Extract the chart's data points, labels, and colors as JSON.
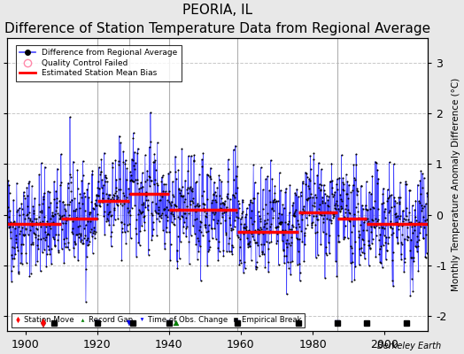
{
  "title": "PEORIA, IL",
  "subtitle": "Difference of Station Temperature Data from Regional Average",
  "ylabel": "Monthly Temperature Anomaly Difference (°C)",
  "xlabel_years": [
    1900,
    1920,
    1940,
    1960,
    1980,
    2000
  ],
  "ylim": [
    -2.3,
    3.5
  ],
  "xlim": [
    1895,
    2012
  ],
  "yticks": [
    -2,
    -1,
    0,
    1,
    2,
    3
  ],
  "background_color": "#e8e8e8",
  "plot_bg_color": "#ffffff",
  "grid_color": "#c8c8c8",
  "line_color": "#4444ff",
  "marker_color": "#000000",
  "bias_color": "#ff0000",
  "watermark": "Berkeley Earth",
  "seed": 42,
  "station_moves": [
    1905
  ],
  "record_gaps": [
    1942
  ],
  "time_obs_changes": [
    1920,
    1929,
    1940,
    1959,
    1987
  ],
  "empirical_breaks": [
    1908,
    1920,
    1930,
    1940,
    1959,
    1976,
    1987,
    1995,
    2006
  ],
  "vert_lines": [
    1920,
    1929,
    1940,
    1959,
    1987
  ],
  "bias_segments": [
    {
      "start": 1895,
      "end": 1910,
      "value": -0.18
    },
    {
      "start": 1910,
      "end": 1920,
      "value": -0.08
    },
    {
      "start": 1920,
      "end": 1929,
      "value": 0.28
    },
    {
      "start": 1929,
      "end": 1940,
      "value": 0.42
    },
    {
      "start": 1940,
      "end": 1959,
      "value": 0.1
    },
    {
      "start": 1959,
      "end": 1976,
      "value": -0.35
    },
    {
      "start": 1976,
      "end": 1987,
      "value": 0.05
    },
    {
      "start": 1987,
      "end": 1995,
      "value": -0.08
    },
    {
      "start": 1995,
      "end": 2012,
      "value": -0.18
    }
  ]
}
